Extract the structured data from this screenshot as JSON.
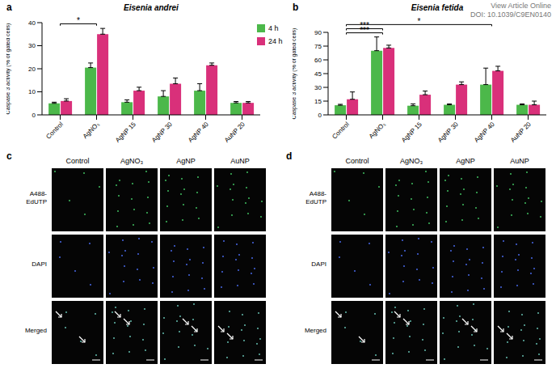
{
  "header": {
    "lines": [
      "View Article Online",
      "DOI: 10.1039/C9EN0140"
    ]
  },
  "chart_data": [
    {
      "type": "bar",
      "label": "a",
      "title": "Eisenia andrei",
      "y_label": "Caspase 3 activity (% of gated cells)",
      "categories": [
        "Control",
        "AgNO₃",
        "AgNP 15",
        "AgNP 30",
        "AgNP 40",
        "AuNP 20"
      ],
      "series": [
        {
          "name": "4 h",
          "color": "#4cb84a",
          "values": [
            5,
            20.5,
            5.5,
            8,
            10.5,
            5.2
          ],
          "errors": [
            0.5,
            2,
            1,
            2.5,
            3,
            0.6
          ]
        },
        {
          "name": "24 h",
          "color": "#d9307a",
          "values": [
            6,
            35,
            10.5,
            13.5,
            21.5,
            5.2
          ],
          "errors": [
            1,
            2.5,
            1.5,
            2.5,
            1,
            0.6
          ]
        }
      ],
      "ylim": [
        0,
        40
      ],
      "yticks": [
        0,
        10,
        20,
        30,
        40
      ],
      "legend": "right",
      "annotations": [
        {
          "from": "Control",
          "to": "AgNO₃",
          "text": "*"
        }
      ]
    },
    {
      "type": "bar",
      "label": "b",
      "title": "Eisenia fetida",
      "y_label": "Caspase 3 activity (% of gated cells)",
      "categories": [
        "Control",
        "AgNO₃",
        "AgNP 15",
        "AgNP 30",
        "AgNP 40",
        "AuNP 20"
      ],
      "series": [
        {
          "name": "4 h",
          "color": "#4cb84a",
          "values": [
            10.5,
            70,
            10,
            11,
            33,
            11
          ],
          "errors": [
            1,
            15,
            2,
            1,
            18,
            1
          ]
        },
        {
          "name": "24 h",
          "color": "#d9307a",
          "values": [
            17,
            73,
            22,
            33,
            48,
            11
          ],
          "errors": [
            8,
            3,
            4,
            3,
            5,
            4
          ]
        }
      ],
      "ylim": [
        0,
        90
      ],
      "yticks": [
        0,
        15,
        30,
        45,
        60,
        75,
        90
      ],
      "annotations": [
        {
          "from": "Control",
          "to": "AgNO₃",
          "text": "***"
        },
        {
          "from": "Control",
          "to": "AgNO₃",
          "text": "***"
        },
        {
          "from": "Control",
          "to": "AgNP 40",
          "text": "*"
        }
      ]
    }
  ],
  "image_panels": [
    {
      "label": "c",
      "columns": [
        "Control",
        "AgNO₃",
        "AgNP",
        "AuNP"
      ],
      "rows": [
        "A488-EdUTP",
        "DAPI",
        "Merged"
      ]
    },
    {
      "label": "d",
      "columns": [
        "Control",
        "AgNO₃",
        "AgNP",
        "AuNP"
      ],
      "rows": [
        "A488-EdUTP",
        "DAPI",
        "Merged"
      ]
    }
  ]
}
